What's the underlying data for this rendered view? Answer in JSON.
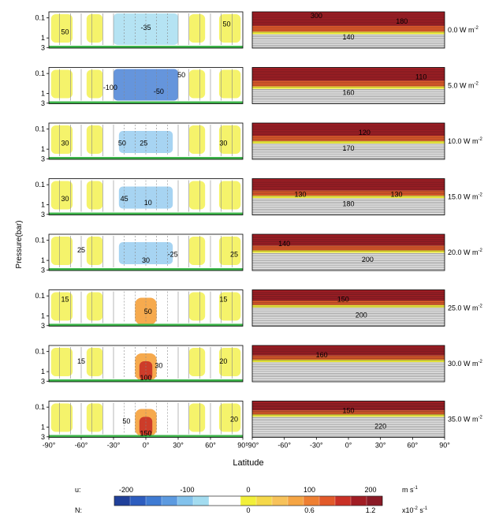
{
  "chart_data": {
    "type": "heatmap",
    "ylabel": "Pressure(bar)",
    "xlabel": "Latitude",
    "x_ticks": [
      "-90°",
      "-60°",
      "-30°",
      "0°",
      "30°",
      "60°",
      "90°"
    ],
    "x_values": [
      -90,
      -60,
      -30,
      0,
      30,
      60,
      90
    ],
    "y_ticks": [
      "0.1",
      "1",
      "3"
    ],
    "y_values": [
      0.1,
      1,
      3
    ],
    "y_scale": "log",
    "ylim": [
      0.05,
      3
    ],
    "xlim": [
      -90,
      90
    ],
    "rows": [
      {
        "forcing": "0.0 W m",
        "exp": "-2",
        "u_labels": [
          {
            "text": "50",
            "lat": -75,
            "p": 0.5
          },
          {
            "text": "-35",
            "lat": 0,
            "p": 0.3
          },
          {
            "text": "50",
            "lat": 75,
            "p": 0.2
          }
        ],
        "n_labels": [
          {
            "text": "300",
            "lat": -30,
            "p": 0.08
          },
          {
            "text": "180",
            "lat": 50,
            "p": 0.15
          },
          {
            "text": "140",
            "lat": 0,
            "p": 0.9
          }
        ]
      },
      {
        "forcing": "5.0 W m",
        "exp": "-2",
        "u_labels": [
          {
            "text": "-100",
            "lat": -33,
            "p": 0.5
          },
          {
            "text": "50",
            "lat": 33,
            "p": 0.12
          },
          {
            "text": "-50",
            "lat": 12,
            "p": 0.8
          }
        ],
        "n_labels": [
          {
            "text": "110",
            "lat": 68,
            "p": 0.15
          },
          {
            "text": "160",
            "lat": 0,
            "p": 0.9
          }
        ]
      },
      {
        "forcing": "10.0 W m",
        "exp": "-2",
        "u_labels": [
          {
            "text": "30",
            "lat": -75,
            "p": 0.5
          },
          {
            "text": "50",
            "lat": -22,
            "p": 0.5
          },
          {
            "text": "25",
            "lat": -2,
            "p": 0.5
          },
          {
            "text": "30",
            "lat": 72,
            "p": 0.5
          }
        ],
        "n_labels": [
          {
            "text": "120",
            "lat": 15,
            "p": 0.15
          },
          {
            "text": "170",
            "lat": 0,
            "p": 0.9
          }
        ]
      },
      {
        "forcing": "15.0 W m",
        "exp": "-2",
        "u_labels": [
          {
            "text": "30",
            "lat": -75,
            "p": 0.5
          },
          {
            "text": "45",
            "lat": -20,
            "p": 0.5
          },
          {
            "text": "10",
            "lat": 2,
            "p": 0.8
          }
        ],
        "n_labels": [
          {
            "text": "130",
            "lat": -45,
            "p": 0.3
          },
          {
            "text": "130",
            "lat": 45,
            "p": 0.3
          },
          {
            "text": "180",
            "lat": 0,
            "p": 0.9
          }
        ]
      },
      {
        "forcing": "20.0 W m",
        "exp": "-2",
        "u_labels": [
          {
            "text": "25",
            "lat": -60,
            "p": 0.3
          },
          {
            "text": "30",
            "lat": 0,
            "p": 1
          },
          {
            "text": "-25",
            "lat": 25,
            "p": 0.5
          },
          {
            "text": "25",
            "lat": 82,
            "p": 0.5
          }
        ],
        "n_labels": [
          {
            "text": "140",
            "lat": -60,
            "p": 0.15
          },
          {
            "text": "200",
            "lat": 18,
            "p": 0.9
          }
        ]
      },
      {
        "forcing": "25.0 W m",
        "exp": "-2",
        "u_labels": [
          {
            "text": "15",
            "lat": -75,
            "p": 0.15
          },
          {
            "text": "50",
            "lat": 2,
            "p": 0.6
          },
          {
            "text": "15",
            "lat": 72,
            "p": 0.15
          }
        ],
        "n_labels": [
          {
            "text": "150",
            "lat": -5,
            "p": 0.15
          },
          {
            "text": "200",
            "lat": 12,
            "p": 0.9
          }
        ]
      },
      {
        "forcing": "30.0 W m",
        "exp": "-2",
        "u_labels": [
          {
            "text": "15",
            "lat": -60,
            "p": 0.3
          },
          {
            "text": "30",
            "lat": 12,
            "p": 0.5
          },
          {
            "text": "100",
            "lat": 0,
            "p": 2
          },
          {
            "text": "20",
            "lat": 72,
            "p": 0.3
          }
        ],
        "n_labels": [
          {
            "text": "160",
            "lat": -25,
            "p": 0.15
          }
        ]
      },
      {
        "forcing": "35.0 W m",
        "exp": "-2",
        "u_labels": [
          {
            "text": "50",
            "lat": -18,
            "p": 0.5
          },
          {
            "text": "150",
            "lat": 0,
            "p": 2
          },
          {
            "text": "20",
            "lat": 82,
            "p": 0.4
          }
        ],
        "n_labels": [
          {
            "text": "150",
            "lat": 0,
            "p": 0.15
          },
          {
            "text": "220",
            "lat": 30,
            "p": 0.9
          }
        ]
      }
    ],
    "colorbar": {
      "u_label": "u:",
      "n_label": "N:",
      "u_ticks": [
        {
          "v": -200,
          "t": "-200"
        },
        {
          "v": -100,
          "t": "-100"
        },
        {
          "v": 0,
          "t": "0"
        },
        {
          "v": 100,
          "t": "100"
        },
        {
          "v": 200,
          "t": "200"
        }
      ],
      "n_ticks": [
        {
          "v": 0,
          "t": "0"
        },
        {
          "v": 0.6,
          "t": "0.6"
        },
        {
          "v": 1.2,
          "t": "1.2"
        }
      ],
      "u_units": "m s",
      "u_units_exp": "-1",
      "n_units_prefix": "x10",
      "n_units_exp1": "-2",
      "n_units_mid": " s",
      "n_units_exp2": "-1",
      "colors": [
        "#20409a",
        "#2d5dbf",
        "#3f7bd3",
        "#5c9ae0",
        "#82c2ec",
        "#a3dcf0",
        "#ffffff",
        "#ffffff",
        "#f2ef3a",
        "#f5d84a",
        "#f7c25a",
        "#f5a544",
        "#ee7f32",
        "#e25a2a",
        "#c93026",
        "#a11d24",
        "#8a1a26"
      ]
    }
  }
}
